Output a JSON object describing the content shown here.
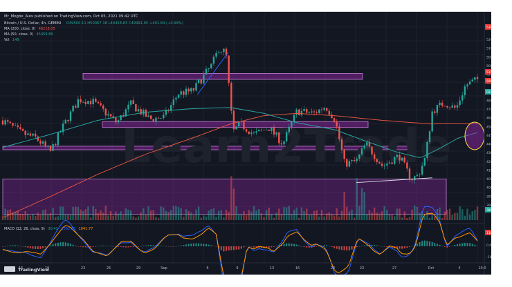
{
  "header": {
    "publish_line": "Mr_Mogbe_Alex published on TradingView.com, Oct 05, 2021 09:42 UTC",
    "symbol_line": "Bitcoin / U.S. Dollar, 4h, GEMINI",
    "ohlc": "O49500.11 H50067.18 L49458.83 C49991.95 +491.84 (+0.99%)",
    "ma200_label": "MA (200, close, 0)",
    "ma200_value": "46218.05",
    "ma50_label": "MA (50, close, 0)",
    "ma50_value": "45459.89",
    "vol_label": "Vol",
    "vol_value": "149"
  },
  "watermark": "Learn2Trade",
  "footer_logo": "TradingView",
  "macd_legend": {
    "label": "MACD (12, 26, close, 9)",
    "v1": "30.41",
    "v2": "1062.18",
    "v3": "1041.77"
  },
  "macd_ticks": [
    "1182.23",
    "0.00",
    "-1000.00"
  ],
  "colors": {
    "background": "#131722",
    "up": "#26a69a",
    "down": "#ef5350",
    "zone": "#9c27b0",
    "ma200": "#e0533f",
    "ma50": "#2aa5a0",
    "macd": "#2962ff",
    "signal": "#ff9800"
  },
  "chart_data": {
    "type": "candlestick",
    "symbol": "Bitcoin / U.S. Dollar",
    "timeframe": "4h",
    "x_tick_labels": [
      "16",
      "19",
      "23",
      "26",
      "29",
      "Sep",
      "6",
      "9",
      "13",
      "16",
      "20",
      "23",
      "27",
      "Oct",
      "4",
      "10:0"
    ],
    "y_tick_labels": [
      "52000.00",
      "51000.00",
      "50500.00",
      "50000.00",
      "49991.95",
      "49500.00",
      "49000.00",
      "48000.00",
      "47000.00",
      "46000.00",
      "45000.00",
      "44500.00",
      "44000.00",
      "43000.00",
      "42000.00",
      "41000.00",
      "40500.00",
      "40000.00",
      "39500.00",
      "39000.00"
    ],
    "price_tags": [
      "53000.00",
      "51500.00",
      "50000.00",
      "02:17:02",
      "38003.54"
    ],
    "ylim": [
      38000,
      54000
    ],
    "anchors": [
      [
        0,
        46500
      ],
      [
        0.04,
        45400
      ],
      [
        0.07,
        45000
      ],
      [
        0.1,
        43800
      ],
      [
        0.13,
        46200
      ],
      [
        0.16,
        48300
      ],
      [
        0.19,
        48100
      ],
      [
        0.24,
        46300
      ],
      [
        0.27,
        47900
      ],
      [
        0.31,
        46600
      ],
      [
        0.34,
        46800
      ],
      [
        0.37,
        48800
      ],
      [
        0.4,
        49000
      ],
      [
        0.44,
        51200
      ],
      [
        0.455,
        52600
      ],
      [
        0.47,
        52300
      ],
      [
        0.485,
        45500
      ],
      [
        0.5,
        46200
      ],
      [
        0.53,
        45300
      ],
      [
        0.56,
        45900
      ],
      [
        0.59,
        44500
      ],
      [
        0.62,
        47300
      ],
      [
        0.655,
        47100
      ],
      [
        0.68,
        47700
      ],
      [
        0.7,
        46600
      ],
      [
        0.72,
        42800
      ],
      [
        0.745,
        43000
      ],
      [
        0.765,
        44500
      ],
      [
        0.8,
        42600
      ],
      [
        0.835,
        43500
      ],
      [
        0.86,
        41500
      ],
      [
        0.875,
        41800
      ],
      [
        0.89,
        43300
      ],
      [
        0.905,
        47300
      ],
      [
        0.93,
        48000
      ],
      [
        0.955,
        47500
      ],
      [
        0.975,
        49500
      ],
      [
        1.0,
        49990
      ]
    ],
    "ma50": [
      [
        0,
        44200
      ],
      [
        0.1,
        45300
      ],
      [
        0.2,
        46500
      ],
      [
        0.3,
        47200
      ],
      [
        0.4,
        47500
      ],
      [
        0.48,
        47600
      ],
      [
        0.55,
        47100
      ],
      [
        0.62,
        46300
      ],
      [
        0.7,
        45700
      ],
      [
        0.76,
        44800
      ],
      [
        0.83,
        43800
      ],
      [
        0.88,
        43300
      ],
      [
        0.92,
        44100
      ],
      [
        0.96,
        45000
      ],
      [
        1.0,
        45460
      ]
    ],
    "ma200": [
      [
        0,
        38200
      ],
      [
        0.1,
        40000
      ],
      [
        0.2,
        41900
      ],
      [
        0.3,
        43600
      ],
      [
        0.4,
        45000
      ],
      [
        0.48,
        46200
      ],
      [
        0.55,
        46900
      ],
      [
        0.62,
        47100
      ],
      [
        0.7,
        46900
      ],
      [
        0.8,
        46500
      ],
      [
        0.9,
        46200
      ],
      [
        1.0,
        46220
      ]
    ],
    "zones": [
      [
        50000,
        50500
      ],
      [
        45900,
        46400
      ],
      [
        44000,
        44300
      ],
      [
        38500,
        41500
      ]
    ],
    "trendline": [
      [
        0.41,
        48700
      ],
      [
        0.475,
        52300
      ]
    ],
    "support_line": [
      [
        0.745,
        41200
      ],
      [
        0.905,
        41600
      ]
    ]
  }
}
